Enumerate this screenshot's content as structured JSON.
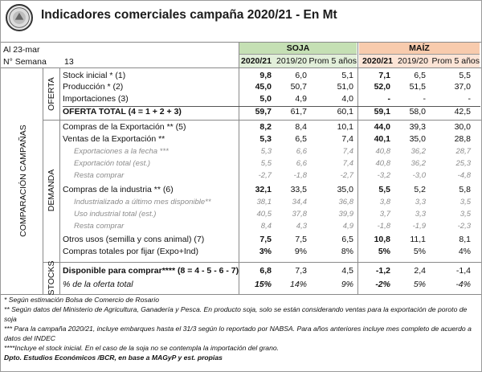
{
  "title": "Indicadores comerciales campaña 2020/21 - En Mt",
  "date_label": "Al 23-mar",
  "week_label": "N° Semana",
  "week_value": "13",
  "soja_label": "SOJA",
  "maiz_label": "MAÍZ",
  "col_headers": [
    "2020/21",
    "2019/20",
    "Prom 5 años",
    "2020/21",
    "2019/20",
    "Prom 5 años"
  ],
  "group_comparacion": "COMPARACIÓN CAMPAÑAS",
  "group_oferta": "OFERTA",
  "group_demanda": "DEMANDA",
  "group_stocks": "STOCKS",
  "rows": [
    {
      "label": "Stock inicial * (1)",
      "v": [
        "9,8",
        "6,0",
        "5,1",
        "7,1",
        "6,5",
        "5,5"
      ]
    },
    {
      "label": "Producción * (2)",
      "v": [
        "45,0",
        "50,7",
        "51,0",
        "52,0",
        "51,5",
        "37,0"
      ]
    },
    {
      "label": "Importaciones (3)",
      "v": [
        "5,0",
        "4,9",
        "4,0",
        "-",
        "-",
        "-"
      ]
    },
    {
      "label": "OFERTA TOTAL (4 = 1 + 2 + 3)",
      "v": [
        "59,7",
        "61,7",
        "60,1",
        "59,1",
        "58,0",
        "42,5"
      ]
    },
    {
      "label": "Compras de la Exportación ** (5)",
      "v": [
        "8,2",
        "8,4",
        "10,1",
        "44,0",
        "39,3",
        "30,0"
      ]
    },
    {
      "label": "Ventas de la Exportación **",
      "v": [
        "5,3",
        "6,5",
        "7,4",
        "40,1",
        "35,0",
        "28,8"
      ]
    },
    {
      "label": "Exportaciones a la fecha ***",
      "v": [
        "5,3",
        "6,6",
        "7,4",
        "40,8",
        "36,2",
        "28,7"
      ]
    },
    {
      "label": "Exportación total (est.)",
      "v": [
        "5,5",
        "6,6",
        "7,4",
        "40,8",
        "36,2",
        "25,3"
      ]
    },
    {
      "label": "Resta comprar",
      "v": [
        "-2,7",
        "-1,8",
        "-2,7",
        "-3,2",
        "-3,0",
        "-4,8"
      ]
    },
    {
      "label": "Compras de la industria ** (6)",
      "v": [
        "32,1",
        "33,5",
        "35,0",
        "5,5",
        "5,2",
        "5,8"
      ]
    },
    {
      "label": "Industrializado a último mes disponible**",
      "v": [
        "38,1",
        "34,4",
        "36,8",
        "3,8",
        "3,3",
        "3,5"
      ]
    },
    {
      "label": "Uso industrial total (est.)",
      "v": [
        "40,5",
        "37,8",
        "39,9",
        "3,7",
        "3,3",
        "3,5"
      ]
    },
    {
      "label": "Resta comprar",
      "v": [
        "8,4",
        "4,3",
        "4,9",
        "-1,8",
        "-1,9",
        "-2,3"
      ]
    },
    {
      "label": "Otros usos (semilla y cons animal) (7)",
      "v": [
        "7,5",
        "7,5",
        "6,5",
        "10,8",
        "11,1",
        "8,1"
      ]
    },
    {
      "label": "Compras totales por fijar (Expo+Ind)",
      "v": [
        "3%",
        "9%",
        "8%",
        "5%",
        "5%",
        "4%"
      ]
    },
    {
      "label": "Disponible para comprar**** (8 = 4 - 5 - 6 - 7)",
      "v": [
        "6,8",
        "7,3",
        "4,5",
        "-1,2",
        "2,4",
        "-1,4"
      ]
    },
    {
      "label": "% de la oferta total",
      "v": [
        "15%",
        "14%",
        "9%",
        "-2%",
        "5%",
        "-4%"
      ]
    }
  ],
  "notes": [
    "* Según estimación Bolsa de Comercio de Rosario",
    "** Según datos del Ministerio de Agricultura, Ganadería y Pesca. En producto soja, solo se están considerando ventas para la exportación de poroto de soja",
    "*** Para la campaña 2020/21, incluye embarques hasta el 31/3 según lo reportado por NABSA. Para años anteriores incluye mes completo de acuerdo a datos del INDEC",
    "****Incluye el stock inicial. En el caso de la soja no se contempla la importación del grano.",
    "Dpto. Estudios Económicos /BCR, en base a MAGyP y est. propias"
  ]
}
